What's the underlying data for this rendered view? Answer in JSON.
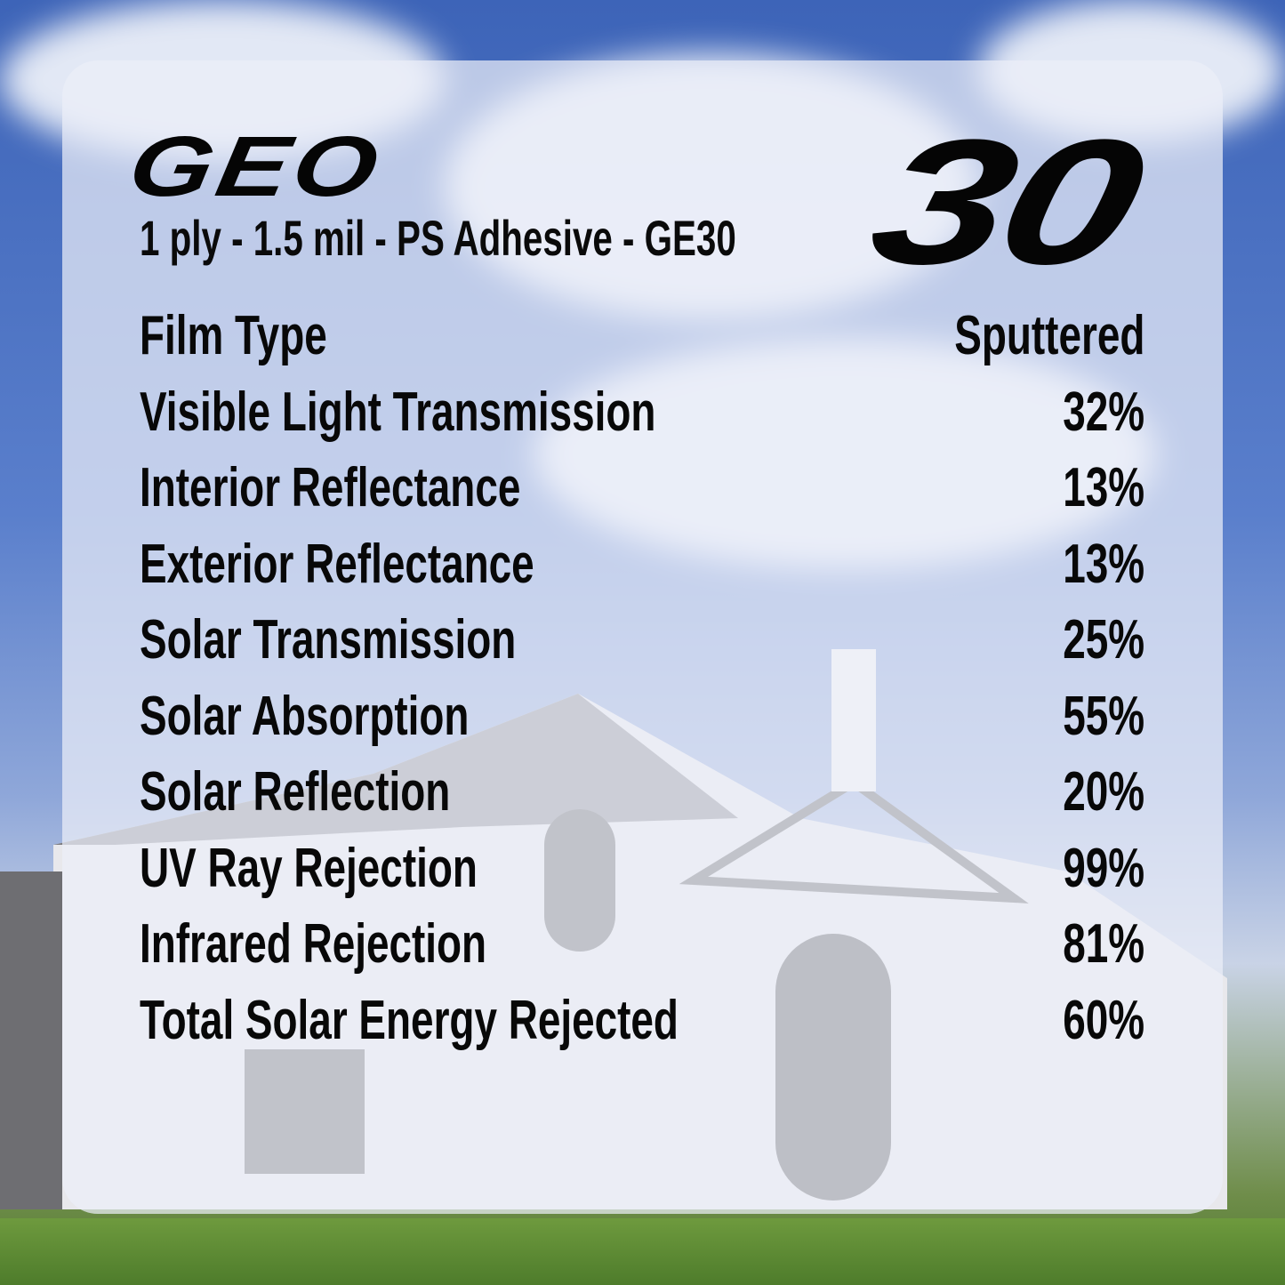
{
  "brand": "GEO",
  "shade_number": "30",
  "subtitle": "1 ply - 1.5 mil - PS Adhesive - GE30",
  "specs": [
    {
      "label": "Film Type",
      "value": "Sputtered"
    },
    {
      "label": "Visible Light Transmission",
      "value": "32%"
    },
    {
      "label": "Interior Reflectance",
      "value": "13%"
    },
    {
      "label": "Exterior Reflectance",
      "value": "13%"
    },
    {
      "label": "Solar Transmission",
      "value": "25%"
    },
    {
      "label": "Solar Absorption",
      "value": "55%"
    },
    {
      "label": "Solar Reflection",
      "value": "20%"
    },
    {
      "label": "UV Ray Rejection",
      "value": "99%"
    },
    {
      "label": "Infrared Rejection",
      "value": "81%"
    },
    {
      "label": "Total Solar Energy Rejected",
      "value": "60%"
    }
  ],
  "colors": {
    "sky": "#3d64b8",
    "text": "#080808",
    "panel": "#eceef8"
  }
}
